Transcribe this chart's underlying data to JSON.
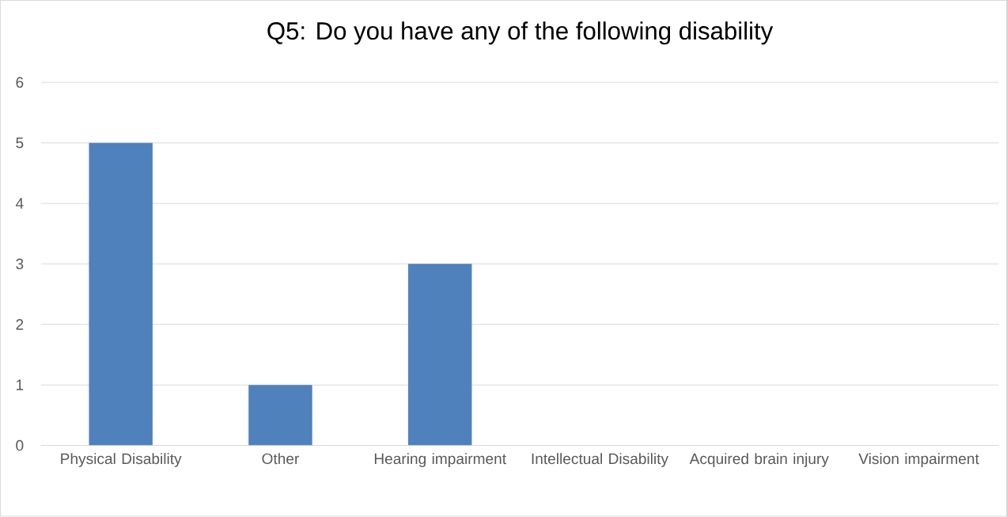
{
  "chart_data": {
    "type": "bar",
    "title": "Q5: Do you have any of the following disability",
    "categories": [
      "Physical Disability",
      "Other",
      "Hearing impairment",
      "Intellectual Disability",
      "Acquired brain injury",
      "Vision impairment"
    ],
    "values": [
      5,
      1,
      3,
      0,
      0,
      0
    ],
    "color": "#4f81bd",
    "ylim": [
      0,
      6
    ],
    "yticks": [
      0,
      1,
      2,
      3,
      4,
      5,
      6
    ],
    "grid": "y"
  }
}
